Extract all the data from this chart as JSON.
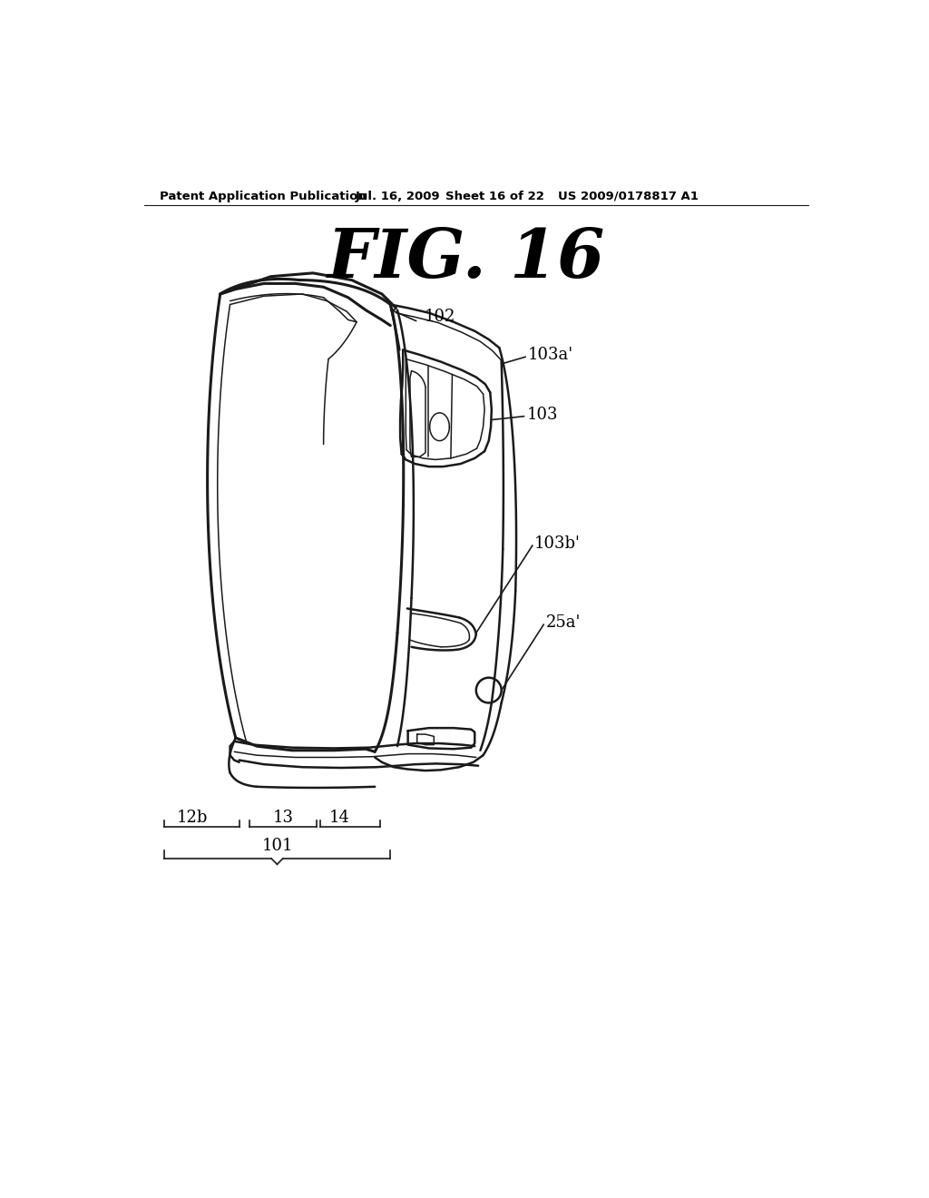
{
  "background_color": "#ffffff",
  "header_text": "Patent Application Publication",
  "header_date": "Jul. 16, 2009",
  "header_sheet": "Sheet 16 of 22",
  "header_patent": "US 2009/0178817 A1",
  "figure_title": "FIG. 16",
  "line_color": "#1a1a1a",
  "text_color": "#000000",
  "lw_main": 1.8,
  "lw_thin": 1.1,
  "lw_thick": 2.2
}
